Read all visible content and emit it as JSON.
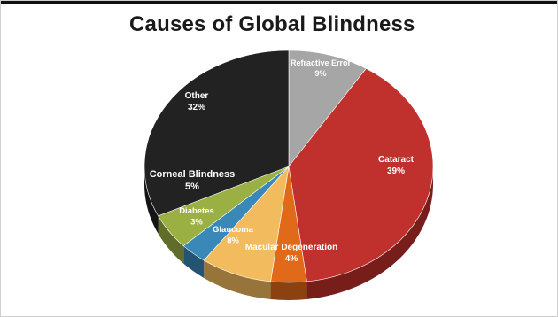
{
  "chart_data": {
    "type": "pie",
    "title": "Causes of Global Blindness",
    "slices": [
      {
        "name": "Refractive Error",
        "value": 9,
        "label_value": "9%",
        "color": "#a6a6a6"
      },
      {
        "name": "Cataract",
        "value": 39,
        "label_value": "39%",
        "color": "#c0302c"
      },
      {
        "name": "Macular Degeneration",
        "value": 4,
        "label_value": "4%",
        "color": "#e06a1a"
      },
      {
        "name": "Glaucoma",
        "value": 8,
        "label_value": "8%",
        "color": "#f2bb5e"
      },
      {
        "name": "Diabetes",
        "value": 3,
        "label_value": "3%",
        "color": "#3a88b8"
      },
      {
        "name": "Corneal Blindness",
        "value": 5,
        "label_value": "5%",
        "color": "#9bb043"
      },
      {
        "name": "Other",
        "value": 32,
        "label_value": "32%",
        "color": "#222222"
      }
    ],
    "legend": "none"
  }
}
